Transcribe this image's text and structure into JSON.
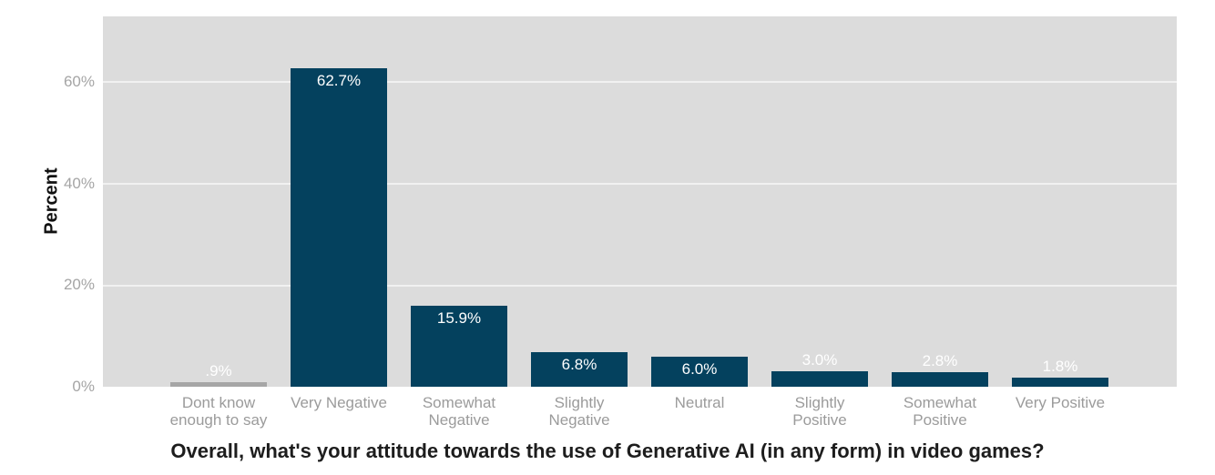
{
  "chart_data": {
    "type": "bar",
    "title": "Overall, what's your attitude towards the use of Generative AI (in any form) in video games?",
    "xlabel": "",
    "ylabel": "Percent",
    "categories": [
      "Dont know enough to say",
      "Very Negative",
      "Somewhat Negative",
      "Slightly Negative",
      "Neutral",
      "Slightly Positive",
      "Somewhat Positive",
      "Very Positive"
    ],
    "category_line_breaks": [
      [
        "Dont know",
        "enough to say"
      ],
      [
        "Very Negative"
      ],
      [
        "Somewhat",
        "Negative"
      ],
      [
        "Slightly",
        "Negative"
      ],
      [
        "Neutral"
      ],
      [
        "Slightly",
        "Positive"
      ],
      [
        "Somewhat",
        "Positive"
      ],
      [
        "Very Positive"
      ]
    ],
    "values": [
      0.9,
      62.7,
      15.9,
      6.8,
      6.0,
      3.0,
      2.8,
      1.8
    ],
    "value_labels": [
      ".9%",
      "62.7%",
      "15.9%",
      "6.8%",
      "6.0%",
      "3.0%",
      "2.8%",
      "1.8%"
    ],
    "bar_colors": [
      "#a6a6a6",
      "#04415e",
      "#04415e",
      "#04415e",
      "#04415e",
      "#04415e",
      "#04415e",
      "#04415e"
    ],
    "ytick_labels": [
      "0%",
      "20%",
      "40%",
      "60%"
    ],
    "ytick_values": [
      0,
      20,
      40,
      60
    ],
    "ylim": [
      0,
      73
    ],
    "grid": "horizontal",
    "legend": "none",
    "colors": {
      "plot_background": "#dcdcdc",
      "page_background": "#ffffff",
      "gridline": "rgba(255,255,255,0.6)",
      "tick_label": "#a5a5a5",
      "category_label": "#9b9b9b",
      "value_label": "#ffffff",
      "axis_title": "#111111",
      "chart_title": "#1d1d1d"
    }
  }
}
